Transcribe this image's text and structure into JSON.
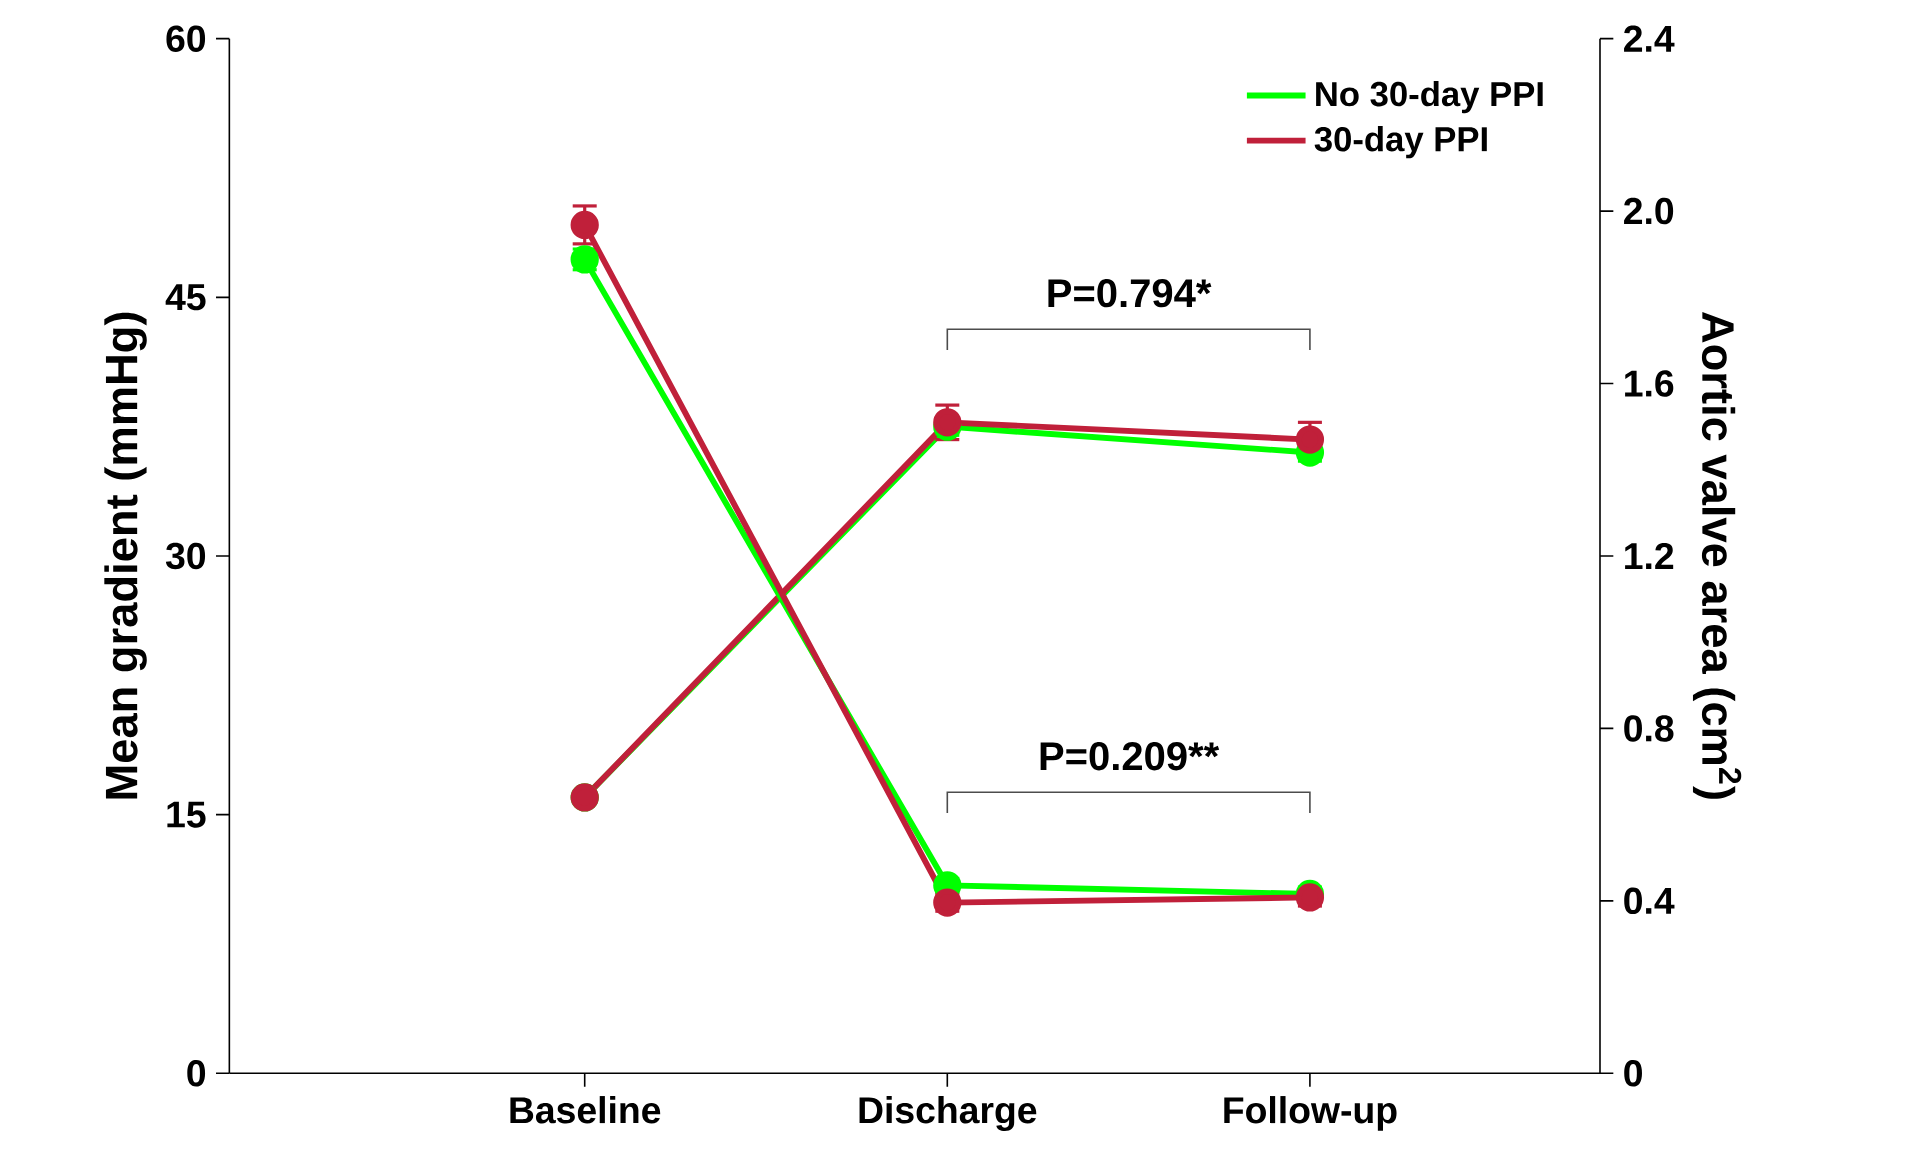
{
  "chart_data": {
    "type": "line",
    "ylabel": "Mean gradient (mmHg)",
    "y2label": "Aortic valve area (cm$^{2}$)",
    "categories": [
      "Baseline",
      "Discharge",
      "Follow-up"
    ],
    "series": [
      {
        "name": "No 30-day PPI",
        "color": "#00ff00",
        "values": [
          47.2,
          10.9,
          10.4
        ],
        "errors": [
          0.6,
          0.4,
          0.4
        ]
      },
      {
        "name": "30-day PPI",
        "color": "#c0203a",
        "values": [
          49.2,
          9.9,
          10.2
        ],
        "errors": [
          1.1,
          0.5,
          0.5
        ]
      },
      {
        "color": "#00ff00",
        "axis": "y2",
        "values": [
          0.64,
          1.5,
          1.44
        ],
        "errors": [
          null,
          0.02,
          0.02
        ]
      },
      {
        "color": "#c0203a",
        "axis": "y2",
        "values": [
          0.64,
          1.51,
          1.47
        ],
        "errors": [
          null,
          0.04,
          0.04
        ]
      }
    ],
    "ylim": [
      0,
      60
    ],
    "yticks": [
      0,
      15,
      30,
      45,
      60
    ],
    "y2lim": [
      0,
      2.4
    ],
    "y2ticks": [
      0,
      0.4,
      0.8,
      1.2,
      1.6,
      {
        "value": 2,
        "label": "2.0"
      },
      2.4
    ],
    "annotations": [
      "P=0.794*",
      "P=0.209**"
    ],
    "legend": "top right",
    "marker": "circle",
    "line_style": "solid",
    "grid": false
  }
}
